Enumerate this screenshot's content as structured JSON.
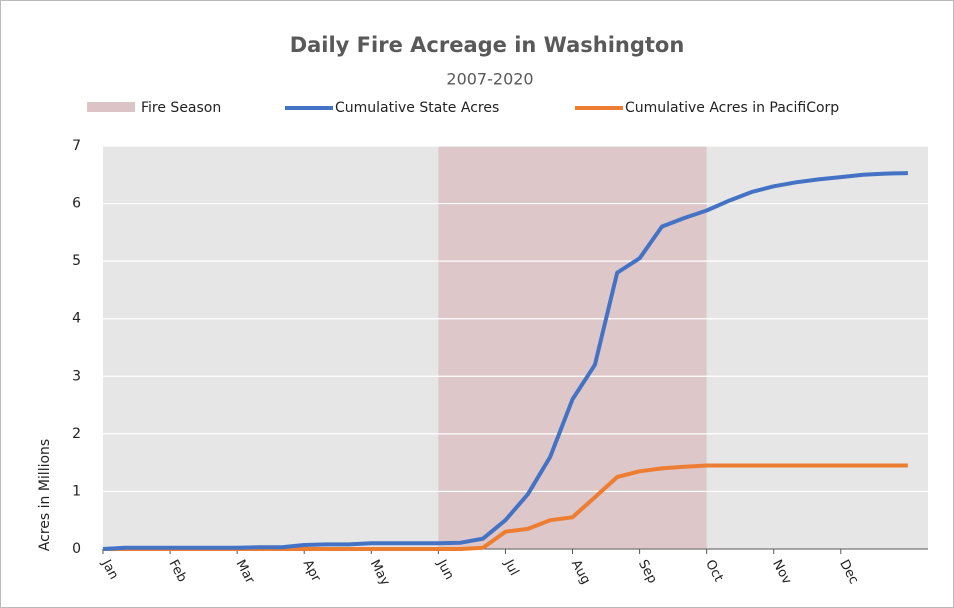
{
  "chart_data": {
    "type": "line",
    "title": "Daily Fire Acreage in Washington",
    "subtitle": "2007-2020",
    "y_label": "Acres in Millions",
    "categories": [
      "Jan",
      null,
      null,
      "Feb",
      null,
      null,
      "Mar",
      null,
      null,
      "Apr",
      null,
      null,
      "May",
      null,
      null,
      "Jun",
      null,
      null,
      "Jul",
      null,
      null,
      "Aug",
      null,
      null,
      "Sep",
      null,
      null,
      "Oct",
      null,
      null,
      "Nov",
      null,
      null,
      "Dec",
      null,
      null,
      null
    ],
    "shaded_region": {
      "name": "Fire Season",
      "from": "Jun",
      "to": "Oct",
      "color": "#dcc3c5"
    },
    "series": [
      {
        "name": "Cumulative State Acres",
        "color": "#4472c4",
        "values": [
          0,
          0.02,
          0.02,
          0.02,
          0.02,
          0.02,
          0.02,
          0.03,
          0.03,
          0.07,
          0.08,
          0.08,
          0.1,
          0.1,
          0.1,
          0.1,
          0.11,
          0.18,
          0.5,
          0.95,
          1.6,
          2.6,
          3.2,
          4.8,
          5.05,
          5.6,
          5.75,
          5.88,
          6.05,
          6.2,
          6.3,
          6.37,
          6.42,
          6.46,
          6.5,
          6.52,
          6.53
        ]
      },
      {
        "name": "Cumulative Acres in PacifiCorp",
        "color": "#ed7d31",
        "values": [
          0,
          0,
          0,
          0,
          0,
          0,
          0,
          0,
          0,
          0,
          0,
          0,
          0,
          0,
          0,
          0,
          0,
          0.02,
          0.3,
          0.35,
          0.5,
          0.55,
          0.9,
          1.25,
          1.35,
          1.4,
          1.43,
          1.45,
          1.45,
          1.45,
          1.45,
          1.45,
          1.45,
          1.45,
          1.45,
          1.45,
          1.45
        ]
      }
    ],
    "ylim": [
      0,
      7
    ],
    "yticks": [
      0,
      1,
      2,
      3,
      4,
      5,
      6,
      7
    ],
    "grid": true,
    "legend": "top"
  }
}
